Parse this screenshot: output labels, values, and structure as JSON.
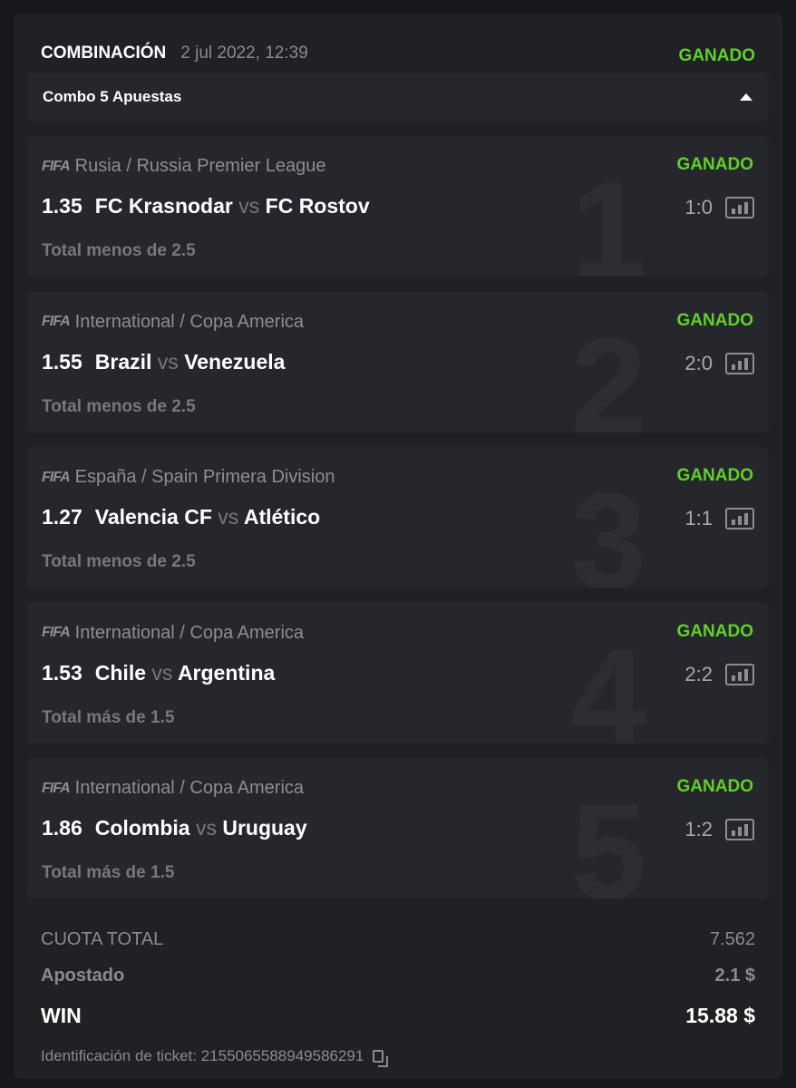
{
  "header": {
    "title": "COMBINACIÓN",
    "date": "2 jul 2022, 12:39",
    "status": "GANADO"
  },
  "combo": {
    "label": "Combo 5 Apuestas"
  },
  "bets": [
    {
      "num": "1",
      "league": "Rusia / Russia Premier League",
      "status": "GANADO",
      "odds": "1.35",
      "home": "FC Krasnodar",
      "vs": "vs",
      "away": "FC Rostov",
      "score": "1:0",
      "market": "Total menos de 2.5"
    },
    {
      "num": "2",
      "league": "International / Copa America",
      "status": "GANADO",
      "odds": "1.55",
      "home": "Brazil",
      "vs": "vs",
      "away": "Venezuela",
      "score": "2:0",
      "market": "Total menos de 2.5"
    },
    {
      "num": "3",
      "league": "España / Spain Primera Division",
      "status": "GANADO",
      "odds": "1.27",
      "home": "Valencia CF",
      "vs": "vs",
      "away": "Atlético",
      "score": "1:1",
      "market": "Total menos de 2.5"
    },
    {
      "num": "4",
      "league": "International / Copa America",
      "status": "GANADO",
      "odds": "1.53",
      "home": "Chile",
      "vs": "vs",
      "away": "Argentina",
      "score": "2:2",
      "market": "Total más de 1.5"
    },
    {
      "num": "5",
      "league": "International / Copa America",
      "status": "GANADO",
      "odds": "1.86",
      "home": "Colombia",
      "vs": "vs",
      "away": "Uruguay",
      "score": "1:2",
      "market": "Total más de 1.5"
    }
  ],
  "sport_logo": "FIFA",
  "summary": {
    "total_odds_label": "CUOTA TOTAL",
    "total_odds": "7.562",
    "staked_label": "Apostado",
    "staked": "2.1 $",
    "win_label": "WIN",
    "win": "15.88 $",
    "ticket_label": "Identificación de ticket: 2155065588949586291"
  },
  "colors": {
    "win_green": "#5fd02a",
    "background": "#202125",
    "card": "#26272c"
  }
}
